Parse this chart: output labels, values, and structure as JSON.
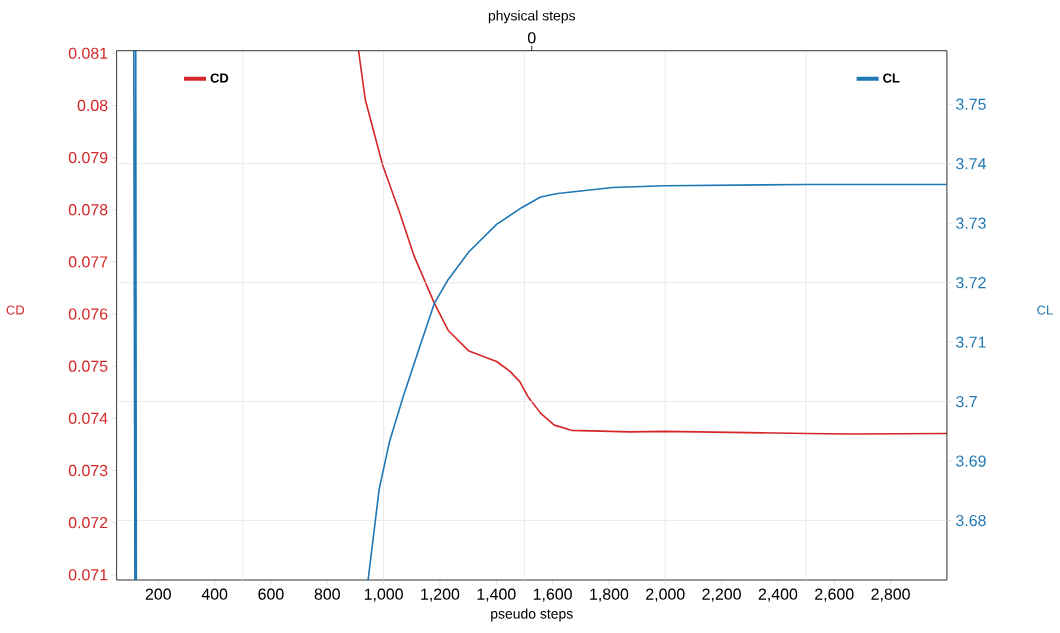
{
  "chart_data": {
    "type": "line",
    "xlabel": "pseudo steps",
    "x2label": "physical steps",
    "ylabel": "CD",
    "y2label": "CL",
    "xlim": [
      52,
      3000
    ],
    "xticks": [
      200,
      400,
      600,
      800,
      {
        "value": 1000,
        "label": "1,000"
      },
      {
        "value": 1200,
        "label": "1,200"
      },
      {
        "value": 1400,
        "label": "1,400"
      },
      {
        "value": 1600,
        "label": "1,600"
      },
      {
        "value": 1800,
        "label": "1,800"
      },
      {
        "value": 2000,
        "label": "2,000"
      },
      {
        "value": 2200,
        "label": "2,200"
      },
      {
        "value": 2400,
        "label": "2,400"
      },
      {
        "value": 2600,
        "label": "2,600"
      },
      {
        "value": 2800,
        "label": "2,800"
      }
    ],
    "annotations": [
      "0"
    ],
    "ylim": [
      0.0709,
      0.08105
    ],
    "yticks": [
      0.071,
      0.072,
      0.073,
      0.074,
      0.075,
      0.076,
      0.077,
      0.078,
      0.079,
      0.08,
      0.081
    ],
    "y2lim": [
      3.67,
      3.759
    ],
    "y2ticks": [
      3.68,
      3.69,
      3.7,
      3.71,
      3.72,
      3.73,
      3.74,
      3.75
    ],
    "grid": true,
    "legend": "top",
    "series": [
      {
        "name": "CD",
        "color": "#d62728",
        "x": [
          911,
          935,
          997,
          1058,
          1107,
          1180,
          1229,
          1303,
          1401,
          1449,
          1484,
          1511,
          1557,
          1606,
          1667,
          1875,
          1998,
          2500,
          2659,
          3000
        ],
        "values": [
          0.08105,
          0.08011,
          0.07885,
          0.07793,
          0.07713,
          0.07621,
          0.07569,
          0.07529,
          0.07509,
          0.0749,
          0.0747,
          0.07443,
          0.0741,
          0.07387,
          0.07377,
          0.07374,
          0.07375,
          0.07371,
          0.0737,
          0.07371
        ]
      },
      {
        "name": "CL",
        "color": "#1f77b4",
        "axis": "y2",
        "x": [
          113,
          117,
          120,
          122,
          500,
          945,
          984,
          1021,
          1070,
          1131,
          1180,
          1229,
          1303,
          1401,
          1490,
          1557,
          1618,
          1814,
          1998,
          2500,
          3000
        ],
        "values": [
          3.759,
          3.67,
          3.759,
          3.67,
          null,
          3.67,
          3.6852,
          3.6933,
          3.7009,
          3.7096,
          3.7165,
          3.7205,
          3.7252,
          3.7298,
          3.7326,
          3.7344,
          3.735,
          3.736,
          3.7363,
          3.7365,
          3.7365
        ]
      }
    ]
  }
}
